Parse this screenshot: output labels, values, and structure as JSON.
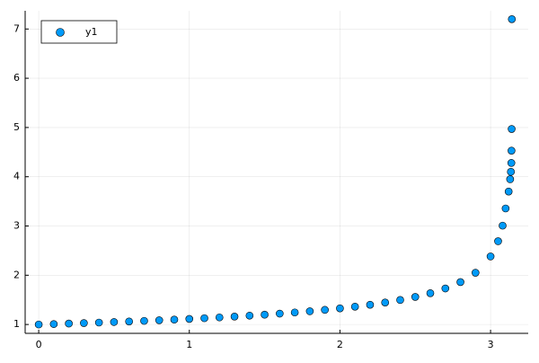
{
  "chart_data": {
    "type": "scatter",
    "series": [
      {
        "name": "y1",
        "color": "#009af9",
        "x": [
          0,
          0.1,
          0.2,
          0.3,
          0.4,
          0.5,
          0.6,
          0.7,
          0.8,
          0.9,
          1.0,
          1.1,
          1.2,
          1.3,
          1.4,
          1.5,
          1.6,
          1.7,
          1.8,
          1.9,
          2.0,
          2.1,
          2.2,
          2.3,
          2.4,
          2.5,
          2.6,
          2.7,
          2.8,
          2.9,
          3.0,
          3.05,
          3.08,
          3.1,
          3.12,
          3.13,
          3.135,
          3.138,
          3.139,
          3.14,
          3.1413
        ],
        "values": [
          1.0,
          1.009,
          1.019,
          1.029,
          1.039,
          1.05,
          1.061,
          1.073,
          1.086,
          1.099,
          1.113,
          1.128,
          1.144,
          1.161,
          1.18,
          1.199,
          1.221,
          1.244,
          1.269,
          1.297,
          1.328,
          1.362,
          1.401,
          1.446,
          1.498,
          1.56,
          1.636,
          1.732,
          1.861,
          2.051,
          2.382,
          2.691,
          3.007,
          3.356,
          3.7,
          3.95,
          4.1,
          4.28,
          4.53,
          4.97,
          7.2
        ]
      }
    ],
    "xlim": [
      -0.09,
      3.25
    ],
    "xticks": [
      0,
      1,
      2,
      3
    ],
    "ylim": [
      0.82,
      7.37
    ],
    "yticks": [
      1,
      2,
      3,
      4,
      5,
      6,
      7
    ],
    "grid": true,
    "legend": "top-left"
  }
}
